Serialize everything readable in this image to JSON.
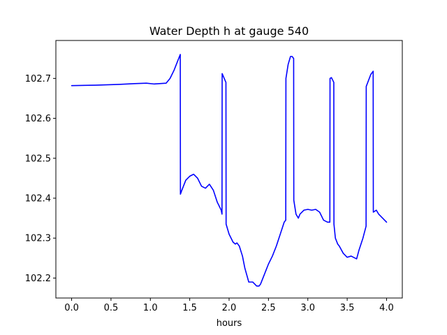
{
  "chart_data": {
    "type": "line",
    "title": "Water Depth h at gauge 540",
    "xlabel": "hours",
    "ylabel": "",
    "xlim": [
      -0.2,
      4.2
    ],
    "ylim": [
      102.15,
      102.795
    ],
    "xticks": [
      0.0,
      0.5,
      1.0,
      1.5,
      2.0,
      2.5,
      3.0,
      3.5,
      4.0
    ],
    "xtick_labels": [
      "0.0",
      "0.5",
      "1.0",
      "1.5",
      "2.0",
      "2.5",
      "3.0",
      "3.5",
      "4.0"
    ],
    "yticks": [
      102.2,
      102.3,
      102.4,
      102.5,
      102.6,
      102.7
    ],
    "ytick_labels": [
      "102.2",
      "102.3",
      "102.4",
      "102.5",
      "102.6",
      "102.7"
    ],
    "grid": false,
    "series": [
      {
        "color": "#0000ff",
        "x": [
          0.0,
          0.3,
          0.6,
          0.8,
          0.95,
          1.05,
          1.2,
          1.25,
          1.3,
          1.35,
          1.38,
          1.382,
          1.4,
          1.45,
          1.5,
          1.55,
          1.6,
          1.65,
          1.7,
          1.75,
          1.8,
          1.85,
          1.9,
          1.91,
          1.912,
          1.96,
          1.962,
          2.0,
          2.05,
          2.08,
          2.1,
          2.13,
          2.17,
          2.2,
          2.25,
          2.3,
          2.35,
          2.38,
          2.4,
          2.45,
          2.5,
          2.55,
          2.6,
          2.65,
          2.7,
          2.72,
          2.722,
          2.75,
          2.78,
          2.8,
          2.82,
          2.822,
          2.85,
          2.88,
          2.9,
          2.95,
          3.0,
          3.05,
          3.1,
          3.15,
          3.2,
          3.25,
          3.28,
          3.282,
          3.3,
          3.33,
          3.332,
          3.35,
          3.38,
          3.4,
          3.45,
          3.5,
          3.55,
          3.6,
          3.62,
          3.65,
          3.7,
          3.74,
          3.742,
          3.8,
          3.83,
          3.832,
          3.87,
          3.9,
          3.95,
          4.0
        ],
        "y": [
          102.682,
          102.683,
          102.685,
          102.687,
          102.688,
          102.686,
          102.688,
          102.7,
          102.72,
          102.745,
          102.76,
          102.41,
          102.42,
          102.445,
          102.455,
          102.46,
          102.45,
          102.43,
          102.425,
          102.435,
          102.42,
          102.39,
          102.37,
          102.36,
          102.712,
          102.69,
          102.335,
          102.31,
          102.29,
          102.285,
          102.288,
          102.28,
          102.255,
          102.225,
          102.19,
          102.19,
          102.18,
          102.18,
          102.185,
          102.21,
          102.235,
          102.255,
          102.28,
          102.31,
          102.34,
          102.345,
          102.7,
          102.735,
          102.755,
          102.755,
          102.75,
          102.395,
          102.36,
          102.35,
          102.36,
          102.37,
          102.372,
          102.37,
          102.372,
          102.365,
          102.345,
          102.34,
          102.34,
          102.7,
          102.702,
          102.69,
          102.335,
          102.3,
          102.285,
          102.28,
          102.262,
          102.252,
          102.255,
          102.25,
          102.248,
          102.27,
          102.3,
          102.33,
          102.68,
          102.71,
          102.718,
          102.365,
          102.37,
          102.36,
          102.35,
          102.34
        ]
      }
    ]
  }
}
